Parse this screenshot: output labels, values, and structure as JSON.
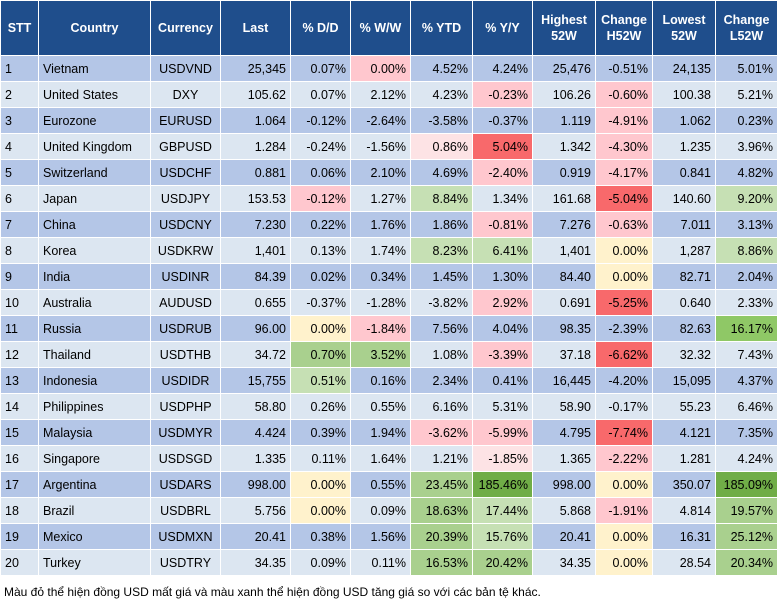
{
  "table": {
    "header": [
      "STT",
      "Country",
      "Currency",
      "Last",
      "% D/D",
      "% W/W",
      "% YTD",
      "% Y/Y",
      "Highest 52W",
      "Change H52W",
      "Lowest 52W",
      "Change L52W"
    ],
    "rows": [
      [
        "1",
        "Vietnam",
        "USDVND",
        "25,345",
        "0.07%",
        {
          "text": "0.00%",
          "fill": "#ffc7ce"
        },
        "4.52%",
        "4.24%",
        "25,476",
        "-0.51%",
        "24,135",
        "5.01%"
      ],
      [
        "2",
        "United States",
        "DXY",
        "105.62",
        "0.07%",
        "2.12%",
        "4.23%",
        {
          "text": "-0.23%",
          "fill": "#ffc7ce"
        },
        "106.26",
        {
          "text": "-0.60%",
          "fill": "#ffc7ce"
        },
        "100.38",
        "5.21%"
      ],
      [
        "3",
        "Eurozone",
        "EURUSD",
        "1.064",
        "-0.12%",
        "-2.64%",
        "-3.58%",
        "-0.37%",
        "1.119",
        {
          "text": "-4.91%",
          "fill": "#ffc7ce"
        },
        "1.062",
        "0.23%"
      ],
      [
        "4",
        "United Kingdom",
        "GBPUSD",
        "1.284",
        "-0.24%",
        "-1.56%",
        {
          "text": "0.86%",
          "fill": "#fde3e5"
        },
        {
          "text": "5.04%",
          "fill": "#f8696b"
        },
        "1.342",
        {
          "text": "-4.30%",
          "fill": "#ffc7ce"
        },
        "1.235",
        "3.96%"
      ],
      [
        "5",
        "Switzerland",
        "USDCHF",
        "0.881",
        "0.06%",
        "2.10%",
        "4.69%",
        {
          "text": "-2.40%",
          "fill": "#ffc7ce"
        },
        "0.919",
        {
          "text": "-4.17%",
          "fill": "#ffc7ce"
        },
        "0.841",
        "4.82%"
      ],
      [
        "6",
        "Japan",
        "USDJPY",
        "153.53",
        {
          "text": "-0.12%",
          "fill": "#ffc7ce"
        },
        "1.27%",
        {
          "text": "8.84%",
          "fill": "#c6e0b4"
        },
        "1.34%",
        "161.68",
        {
          "text": "-5.04%",
          "fill": "#f8696b"
        },
        "140.60",
        {
          "text": "9.20%",
          "fill": "#c6e0b4"
        }
      ],
      [
        "7",
        "China",
        "USDCNY",
        "7.230",
        "0.22%",
        "1.76%",
        "1.86%",
        {
          "text": "-0.81%",
          "fill": "#ffc7ce"
        },
        "7.276",
        {
          "text": "-0.63%",
          "fill": "#ffc7ce"
        },
        "7.011",
        "3.13%"
      ],
      [
        "8",
        "Korea",
        "USDKRW",
        "1,401",
        "0.13%",
        "1.74%",
        {
          "text": "8.23%",
          "fill": "#c6e0b4"
        },
        {
          "text": "6.41%",
          "fill": "#c6e0b4"
        },
        "1,401",
        {
          "text": "0.00%",
          "fill": "#fff2cc"
        },
        "1,287",
        {
          "text": "8.86%",
          "fill": "#c6e0b4"
        }
      ],
      [
        "9",
        "India",
        "USDINR",
        "84.39",
        "0.02%",
        "0.34%",
        "1.45%",
        "1.30%",
        "84.40",
        {
          "text": "0.00%",
          "fill": "#fff2cc"
        },
        "82.71",
        "2.04%"
      ],
      [
        "10",
        "Australia",
        "AUDUSD",
        "0.655",
        "-0.37%",
        "-1.28%",
        "-3.82%",
        {
          "text": "2.92%",
          "fill": "#ffc7ce"
        },
        "0.691",
        {
          "text": "-5.25%",
          "fill": "#f8696b"
        },
        "0.640",
        "2.33%"
      ],
      [
        "11",
        "Russia",
        "USDRUB",
        "96.00",
        {
          "text": "0.00%",
          "fill": "#fff2cc"
        },
        {
          "text": "-1.84%",
          "fill": "#ffc7ce"
        },
        "7.56%",
        "4.04%",
        "98.35",
        "-2.39%",
        "82.63",
        {
          "text": "16.17%",
          "fill": "#8fc866"
        }
      ],
      [
        "12",
        "Thailand",
        "USDTHB",
        "34.72",
        {
          "text": "0.70%",
          "fill": "#a9d08e"
        },
        {
          "text": "3.52%",
          "fill": "#a9d08e"
        },
        "1.08%",
        {
          "text": "-3.39%",
          "fill": "#ffc7ce"
        },
        "37.18",
        {
          "text": "-6.62%",
          "fill": "#f8696b"
        },
        "32.32",
        "7.43%"
      ],
      [
        "13",
        "Indonesia",
        "USDIDR",
        "15,755",
        {
          "text": "0.51%",
          "fill": "#c6e0b4"
        },
        "0.16%",
        "2.34%",
        "0.41%",
        "16,445",
        "-4.20%",
        "15,095",
        "4.37%"
      ],
      [
        "14",
        "Philippines",
        "USDPHP",
        "58.80",
        "0.26%",
        "0.55%",
        "6.16%",
        "5.31%",
        "58.90",
        "-0.17%",
        "55.23",
        "6.46%"
      ],
      [
        "15",
        "Malaysia",
        "USDMYR",
        "4.424",
        "0.39%",
        "1.94%",
        {
          "text": "-3.62%",
          "fill": "#ffc7ce"
        },
        {
          "text": "-5.99%",
          "fill": "#ffc7ce"
        },
        "4.795",
        {
          "text": "-7.74%",
          "fill": "#f8696b"
        },
        "4.121",
        "7.35%"
      ],
      [
        "16",
        "Singapore",
        "USDSGD",
        "1.335",
        "0.11%",
        "1.64%",
        "1.21%",
        {
          "text": "-1.85%",
          "fill": "#fde3e5"
        },
        "1.365",
        {
          "text": "-2.22%",
          "fill": "#ffc7ce"
        },
        "1.281",
        "4.24%"
      ],
      [
        "17",
        "Argentina",
        "USDARS",
        "998.00",
        {
          "text": "0.00%",
          "fill": "#fff2cc"
        },
        "0.55%",
        {
          "text": "23.45%",
          "fill": "#a9d08e"
        },
        {
          "text": "185.46%",
          "fill": "#70ad47"
        },
        "998.00",
        {
          "text": "0.00%",
          "fill": "#fff2cc"
        },
        "350.07",
        {
          "text": "185.09%",
          "fill": "#70ad47"
        }
      ],
      [
        "18",
        "Brazil",
        "USDBRL",
        "5.756",
        {
          "text": "0.00%",
          "fill": "#fff2cc"
        },
        "0.09%",
        {
          "text": "18.63%",
          "fill": "#a9d08e"
        },
        {
          "text": "17.44%",
          "fill": "#c6e0b4"
        },
        "5.868",
        {
          "text": "-1.91%",
          "fill": "#ffc7ce"
        },
        "4.814",
        {
          "text": "19.57%",
          "fill": "#a9d08e"
        }
      ],
      [
        "19",
        "Mexico",
        "USDMXN",
        "20.41",
        "0.38%",
        "1.56%",
        {
          "text": "20.39%",
          "fill": "#a9d08e"
        },
        {
          "text": "15.76%",
          "fill": "#c6e0b4"
        },
        "20.41",
        {
          "text": "0.00%",
          "fill": "#fff2cc"
        },
        "16.31",
        {
          "text": "25.12%",
          "fill": "#a9d08e"
        }
      ],
      [
        "20",
        "Turkey",
        "USDTRY",
        "34.35",
        "0.09%",
        "0.11%",
        {
          "text": "16.53%",
          "fill": "#a9d08e"
        },
        {
          "text": "20.42%",
          "fill": "#a9d08e"
        },
        "34.35",
        {
          "text": "0.00%",
          "fill": "#fff2cc"
        },
        "28.54",
        {
          "text": "20.34%",
          "fill": "#a9d08e"
        }
      ]
    ]
  },
  "footnote": "Màu đỏ thể hiện đồng USD mất giá và màu xanh thể hiện đồng USD tăng giá so với các bản tệ khác."
}
